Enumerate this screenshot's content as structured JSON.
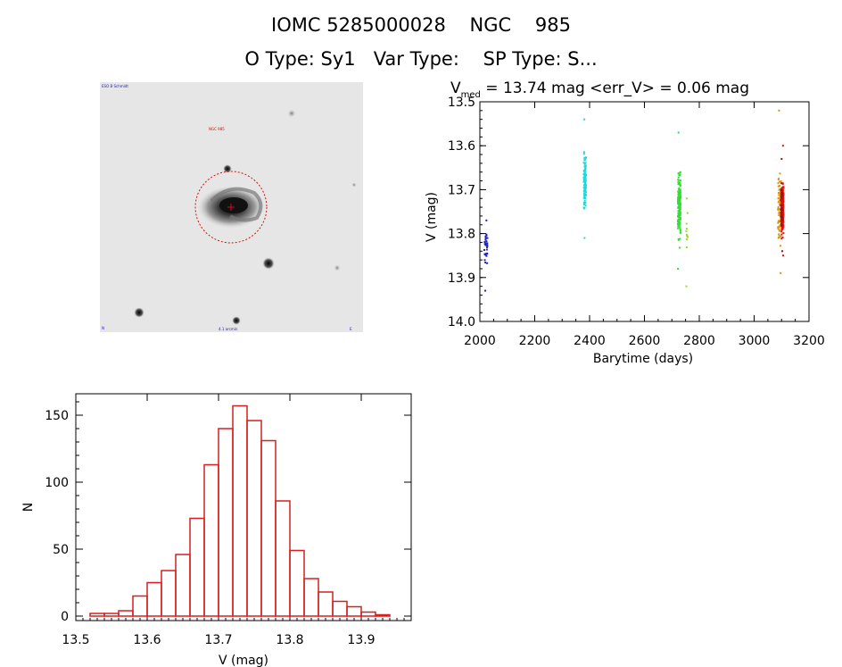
{
  "header": {
    "line1": "IOMC 5285000028    NGC    985",
    "line2": "O Type: Sy1   Var Type:    SP Type: S..."
  },
  "thumbnail": {
    "label_top_left": "ESO B Schmidt",
    "label_target": "NGC 985",
    "label_bottom_left": "N",
    "label_bottom_center": "4.1 arcmin",
    "label_bottom_right": "E"
  },
  "colors": {
    "hist_bar": "#d42020",
    "axis": "#000000"
  },
  "chart_data": [
    {
      "type": "scatter",
      "title_main": "V",
      "title_sub": "med",
      "title_rest": " = 13.74 mag <err_V> = 0.06 mag",
      "xlabel": "Barytime (days)",
      "ylabel": "V (mag)",
      "xlim": [
        2000,
        3200
      ],
      "ylim": [
        14.0,
        13.5
      ],
      "y_inverted": true,
      "xticks": [
        2000,
        2200,
        2400,
        2600,
        2800,
        3000,
        3200
      ],
      "yticks": [
        13.5,
        13.6,
        13.7,
        13.8,
        13.9,
        14.0
      ],
      "series": [
        {
          "color": "#2020c0",
          "x_center": 2022,
          "x_spread": 6,
          "y_range": [
            13.77,
            13.93
          ],
          "y_center": 13.83,
          "count": 30
        },
        {
          "color": "#20d8d8",
          "x_center": 2383,
          "x_spread": 4,
          "y_range": [
            13.54,
            13.81
          ],
          "y_center": 13.68,
          "count": 110
        },
        {
          "color": "#30e030",
          "x_center": 2727,
          "x_spread": 5,
          "y_range": [
            13.57,
            13.88
          ],
          "y_center": 13.74,
          "count": 160
        },
        {
          "color": "#90e020",
          "x_center": 2755,
          "x_spread": 3,
          "y_range": [
            13.72,
            13.92
          ],
          "y_center": 13.8,
          "count": 12
        },
        {
          "color": "#e89000",
          "x_center": 3093,
          "x_spread": 6,
          "y_range": [
            13.52,
            13.89
          ],
          "y_center": 13.74,
          "count": 70
        },
        {
          "color": "#e01010",
          "x_center": 3103,
          "x_spread": 4,
          "y_range": [
            13.6,
            13.85
          ],
          "y_center": 13.74,
          "count": 220
        },
        {
          "color": "#a01010",
          "x_center": 3100,
          "x_spread": 3,
          "y_range": [
            13.63,
            13.84
          ],
          "y_center": 13.74,
          "count": 40
        }
      ]
    },
    {
      "type": "bar",
      "subtype": "histogram",
      "xlabel": "V (mag)",
      "ylabel": "N",
      "xlim": [
        13.5,
        13.97
      ],
      "ylim": [
        0,
        160
      ],
      "xticks": [
        13.5,
        13.6,
        13.7,
        13.8,
        13.9
      ],
      "yticks": [
        0,
        50,
        100,
        150
      ],
      "bin_start": 13.52,
      "bin_width": 0.02,
      "values": [
        2,
        2,
        4,
        15,
        25,
        34,
        46,
        73,
        113,
        140,
        157,
        146,
        131,
        86,
        49,
        28,
        18,
        11,
        7,
        3,
        1
      ]
    }
  ]
}
